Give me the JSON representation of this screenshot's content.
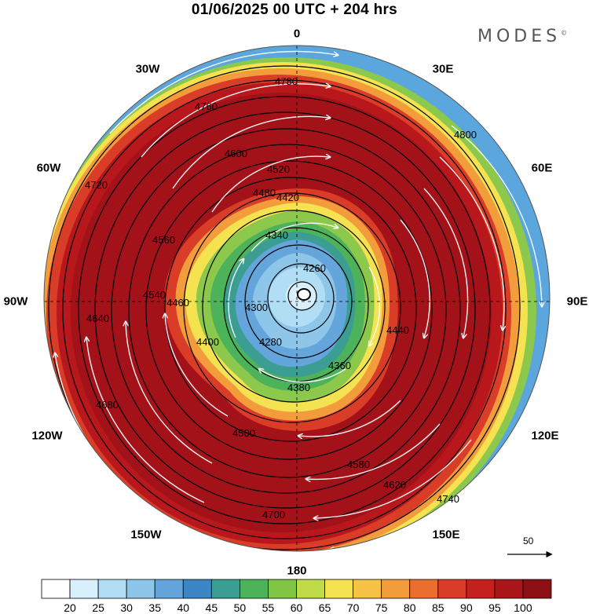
{
  "title": "01/06/2025  00 UTC  + 204 hrs",
  "brand": "MODES",
  "brand_mark": "©",
  "longitude_labels": {
    "lon_0": "0",
    "lon_30e": "30E",
    "lon_60e": "60E",
    "lon_90e": "90E",
    "lon_120e": "120E",
    "lon_150e": "150E",
    "lon_180": "180",
    "lon_150w": "150W",
    "lon_120w": "120W",
    "lon_90w": "90W",
    "lon_60w": "60W",
    "lon_30w": "30W"
  },
  "contour_labels": [
    "4780",
    "4760",
    "4720",
    "4680",
    "4640",
    "4600",
    "4560",
    "4520",
    "4480",
    "4440",
    "4420",
    "4400",
    "4380",
    "4360",
    "4340",
    "4300",
    "4280",
    "4260",
    "4580",
    "4500",
    "4540",
    "4460",
    "4620",
    "4700",
    "4740",
    "4800"
  ],
  "colorbar": {
    "ticks": [
      "20",
      "25",
      "30",
      "35",
      "40",
      "45",
      "50",
      "55",
      "60",
      "65",
      "70",
      "75",
      "80",
      "85",
      "90",
      "95",
      "100"
    ],
    "colors": [
      "#ffffff",
      "#d8f0fb",
      "#b1def4",
      "#8ec6ea",
      "#64a6dc",
      "#3d86c6",
      "#3c9e92",
      "#4cb35a",
      "#80c644",
      "#bfdb4a",
      "#f4e250",
      "#f7c347",
      "#f39c3c",
      "#eb6e2f",
      "#d93d27",
      "#c4201e",
      "#a9161a",
      "#8c1015"
    ]
  },
  "wind_reference": "50",
  "colors": {
    "core_max": "#a31219",
    "contour_line": "#000000",
    "streamline": "#ffffff"
  }
}
